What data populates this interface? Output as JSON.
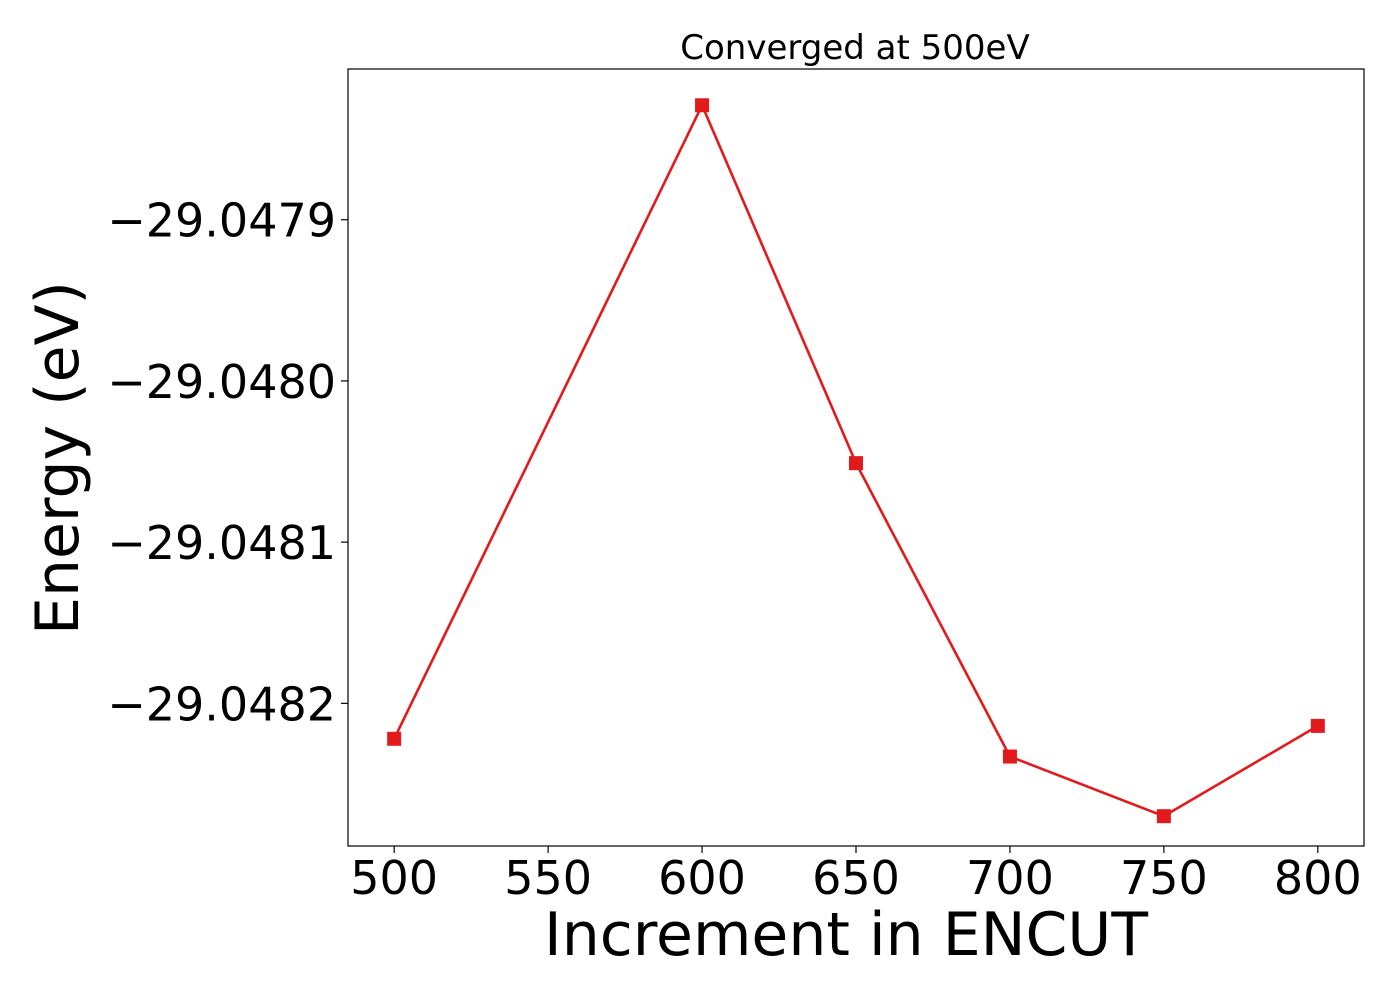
{
  "chart_data": {
    "type": "line",
    "title": "Converged at 500eV",
    "xlabel": "Increment in ENCUT",
    "ylabel": "Energy (eV)",
    "x": [
      500,
      600,
      650,
      700,
      750,
      800
    ],
    "series": [
      {
        "values": [
          -29.048222,
          -29.047829,
          -29.048051,
          -29.048233,
          -29.04827,
          -29.048214
        ],
        "color": "#e31a1c",
        "marker": "square"
      }
    ],
    "xticks": [
      500,
      550,
      600,
      650,
      700,
      750,
      800
    ],
    "xtick_labels": [
      "500",
      "550",
      "600",
      "650",
      "700",
      "750",
      "800"
    ],
    "yticks": [
      -29.0479,
      -29.048,
      -29.0481,
      -29.0482
    ],
    "ytick_labels": [
      "−29.0479",
      "−29.0480",
      "−29.0481",
      "−29.0482"
    ],
    "xlim": [
      485,
      815
    ],
    "ylim": [
      -29.0482885,
      -29.0478065
    ],
    "grid": false,
    "legend": false
  }
}
